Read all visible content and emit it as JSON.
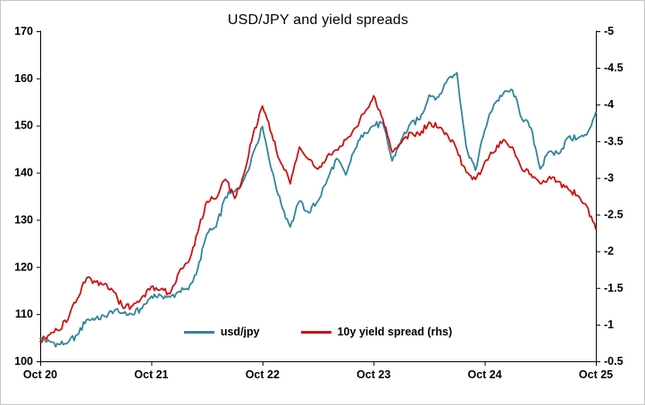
{
  "figure": {
    "background": "#ffffff",
    "border_color": "#c6c6c6"
  },
  "chart_data": {
    "type": "line",
    "title": "USD/JPY and yield spreads",
    "x_note": "x measured in years after the 'Oct 20' tick; monthly samples",
    "x_range": [
      0,
      5
    ],
    "x_ticks": [
      {
        "t": 0,
        "label": "Oct 20"
      },
      {
        "t": 1,
        "label": "Oct 21"
      },
      {
        "t": 2,
        "label": "Oct 22"
      },
      {
        "t": 3,
        "label": "Oct 23"
      },
      {
        "t": 4,
        "label": "Oct 24"
      },
      {
        "t": 5,
        "label": "Oct 25"
      }
    ],
    "left_axis": {
      "min": 100,
      "max": 170,
      "ticks": [
        170,
        160,
        150,
        140,
        130,
        120,
        110,
        100
      ]
    },
    "right_axis": {
      "top": -5,
      "bottom": -0.5,
      "ticks": [
        -5,
        -4.5,
        -4,
        -3.5,
        -3,
        -2.5,
        -2,
        -1.5,
        -1,
        -0.5
      ]
    },
    "grid": "off",
    "legend_position": "inside-bottom-center",
    "x": [
      0,
      0.0833,
      0.1667,
      0.25,
      0.3333,
      0.4167,
      0.5,
      0.5833,
      0.6667,
      0.75,
      0.8333,
      0.9167,
      1,
      1.0833,
      1.1667,
      1.25,
      1.3333,
      1.4167,
      1.5,
      1.5833,
      1.6667,
      1.75,
      1.8333,
      1.9167,
      2,
      2.0833,
      2.1667,
      2.25,
      2.3333,
      2.4167,
      2.5,
      2.5833,
      2.6667,
      2.75,
      2.8333,
      2.9167,
      3,
      3.0833,
      3.1667,
      3.25,
      3.3333,
      3.4167,
      3.5,
      3.5833,
      3.6667,
      3.75,
      3.8333,
      3.9167,
      4,
      4.0833,
      4.1667,
      4.25,
      4.3333,
      4.4167,
      4.5,
      4.5833,
      4.6667,
      4.75,
      4.8333,
      4.9167,
      5
    ],
    "series": [
      {
        "name": "usd/jpy",
        "axis": "left",
        "color": "#31849b",
        "values": [
          104.8,
          104.2,
          103.6,
          104.0,
          105.6,
          108.8,
          109.1,
          109.5,
          110.7,
          110.2,
          109.9,
          111.2,
          113.8,
          114.0,
          113.6,
          114.8,
          115.2,
          119.5,
          127.0,
          128.5,
          134.8,
          136.0,
          138.5,
          144.2,
          149.8,
          140.5,
          133.5,
          128.5,
          134.0,
          131.5,
          134.0,
          138.5,
          143.0,
          139.5,
          145.0,
          148.5,
          150.0,
          150.5,
          142.5,
          147.0,
          150.5,
          151.3,
          156.5,
          156.0,
          159.8,
          161.2,
          145.5,
          140.5,
          149.0,
          154.5,
          156.8,
          157.5,
          151.5,
          149.5,
          140.8,
          144.5,
          144.0,
          147.5,
          147.2,
          148.0,
          152.8
        ]
      },
      {
        "name": "10y yield spread (rhs)",
        "axis": "right",
        "color": "#cb1212",
        "values": [
          -0.77,
          -0.86,
          -0.92,
          -1.07,
          -1.35,
          -1.63,
          -1.58,
          -1.56,
          -1.44,
          -1.22,
          -1.26,
          -1.38,
          -1.52,
          -1.48,
          -1.42,
          -1.72,
          -1.85,
          -2.25,
          -2.68,
          -2.72,
          -2.98,
          -2.72,
          -3.05,
          -3.6,
          -3.98,
          -3.6,
          -3.2,
          -2.92,
          -3.42,
          -3.25,
          -3.12,
          -3.3,
          -3.38,
          -3.52,
          -3.68,
          -3.88,
          -4.12,
          -3.8,
          -3.35,
          -3.48,
          -3.62,
          -3.58,
          -3.76,
          -3.68,
          -3.58,
          -3.38,
          -3.08,
          -2.98,
          -3.22,
          -3.35,
          -3.52,
          -3.42,
          -3.12,
          -3.05,
          -2.92,
          -3.02,
          -2.95,
          -2.85,
          -2.76,
          -2.62,
          -2.3
        ]
      }
    ]
  }
}
